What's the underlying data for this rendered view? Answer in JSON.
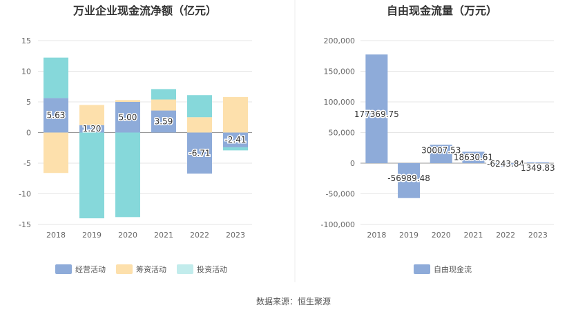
{
  "source_label": "数据来源：恒生聚源",
  "chart_data": [
    {
      "type": "bar",
      "stacked": true,
      "title": "万业企业现金流净额（亿元）",
      "categories": [
        "2018",
        "2019",
        "2020",
        "2021",
        "2022",
        "2023"
      ],
      "ylim": [
        -15,
        15
      ],
      "yticks": [
        "15",
        "10",
        "5",
        "0",
        "-5",
        "-10",
        "-15"
      ],
      "ytick_values": [
        15,
        10,
        5,
        0,
        -5,
        -10,
        -15
      ],
      "series": [
        {
          "name": "经营活动",
          "color": "#8eabd9",
          "values": [
            5.63,
            1.2,
            5.0,
            3.59,
            -6.71,
            -2.41
          ]
        },
        {
          "name": "筹资活动",
          "color": "#fde0ac",
          "values": [
            -6.6,
            3.3,
            0.3,
            1.8,
            2.5,
            5.8
          ]
        },
        {
          "name": "投资活动",
          "color": "#86d8da",
          "values": [
            6.6,
            -14.0,
            -13.8,
            1.7,
            3.6,
            -0.5
          ]
        }
      ],
      "data_labels": [
        "5.63",
        "1.20",
        "5.00",
        "3.59",
        "-6.71",
        "-2.41"
      ]
    },
    {
      "type": "bar",
      "title": "自由现金流量（万元）",
      "categories": [
        "2018",
        "2019",
        "2020",
        "2021",
        "2022",
        "2023"
      ],
      "ylim": [
        -100000,
        200000
      ],
      "yticks": [
        "200,000",
        "150,000",
        "100,000",
        "50,000",
        "0",
        "-50,000",
        "-100,000"
      ],
      "ytick_values": [
        200000,
        150000,
        100000,
        50000,
        0,
        -50000,
        -100000
      ],
      "series": [
        {
          "name": "自由现金流",
          "color": "#8eabd9",
          "values": [
            177369.75,
            -56989.48,
            30007.53,
            18630.61,
            -6243.84,
            1349.83
          ]
        }
      ],
      "data_labels": [
        "177369.75",
        "-56989.48",
        "30007.53",
        "18630.61",
        "-6243.84",
        "1349.83"
      ]
    }
  ]
}
